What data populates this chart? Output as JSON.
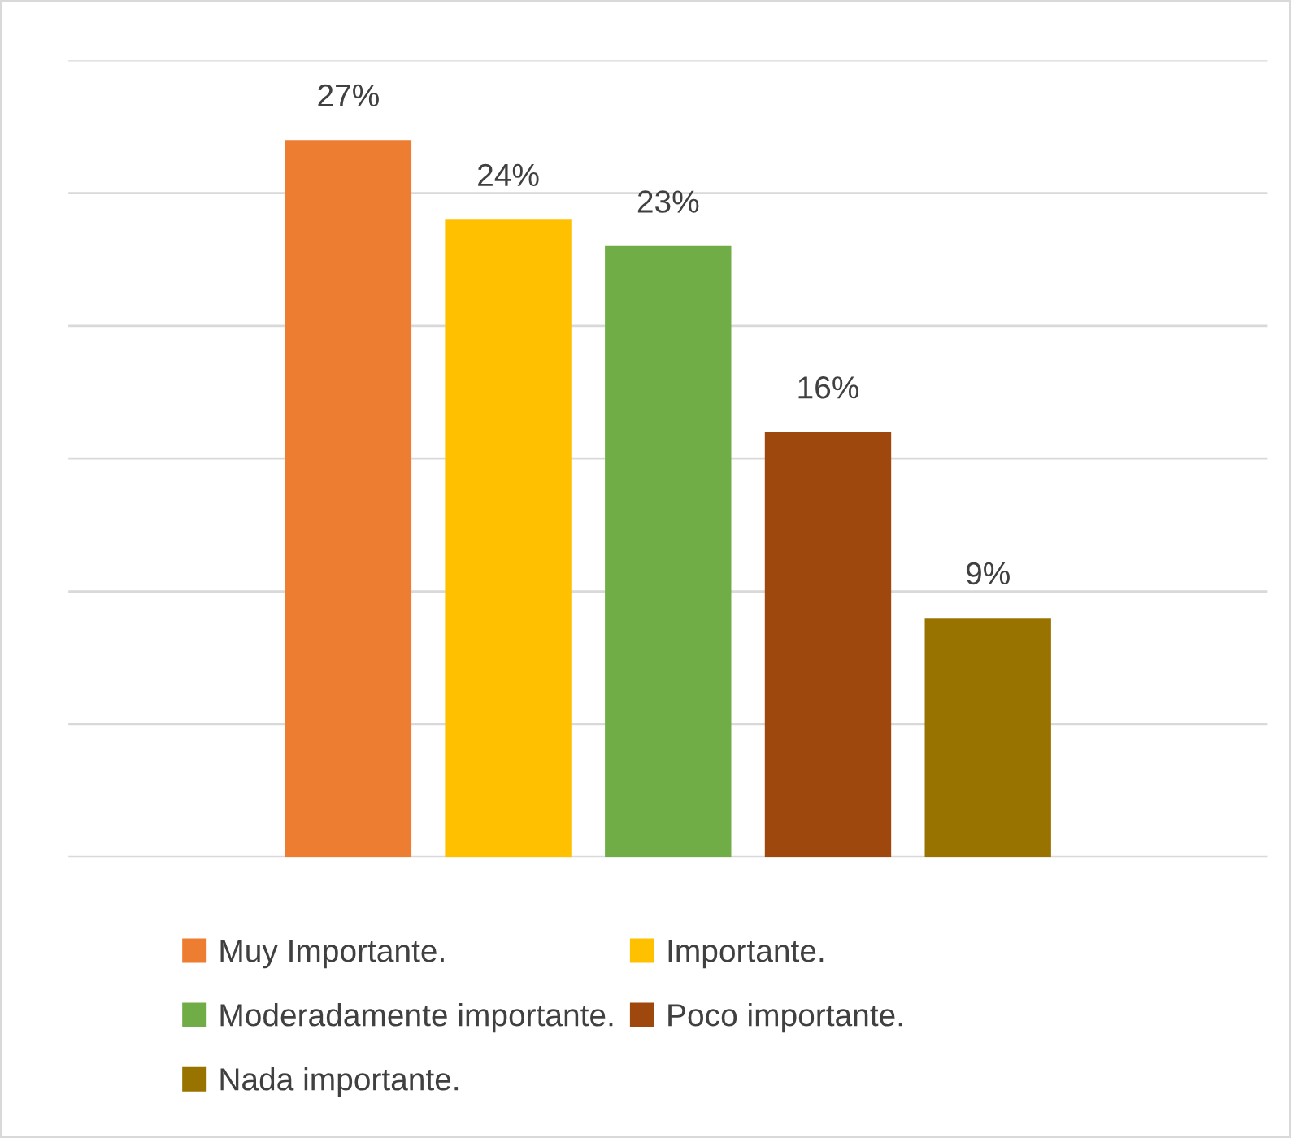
{
  "chart_data": {
    "type": "bar",
    "categories": [
      null
    ],
    "series": [
      {
        "name": "Muy Importante.",
        "color": "#ed7d31",
        "values": [
          27
        ],
        "value_labels": [
          "27%"
        ]
      },
      {
        "name": "Importante.",
        "color": "#ffc000",
        "values": [
          24
        ],
        "value_labels": [
          "24%"
        ]
      },
      {
        "name": "Moderadamente importante.",
        "color": "#70ad47",
        "values": [
          23
        ],
        "value_labels": [
          "23%"
        ]
      },
      {
        "name": "Poco importante.",
        "color": "#9e480e",
        "values": [
          16
        ],
        "value_labels": [
          "16%"
        ]
      },
      {
        "name": "Nada importante.",
        "color": "#997300",
        "values": [
          9
        ],
        "value_labels": [
          "9%"
        ]
      }
    ],
    "ylim": [
      0,
      30
    ],
    "yticks": [
      {
        "value": 0,
        "label": null
      },
      {
        "value": 5,
        "label": null
      },
      {
        "value": 10,
        "label": null
      },
      {
        "value": 15,
        "label": null
      },
      {
        "value": 20,
        "label": null
      },
      {
        "value": 25,
        "label": null
      },
      {
        "value": 30,
        "label": null
      }
    ],
    "grid": "y",
    "legend": "bottom"
  }
}
